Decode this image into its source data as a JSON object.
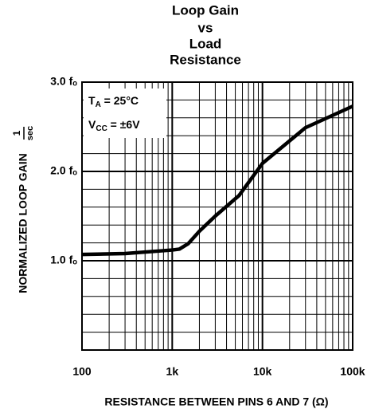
{
  "chart_data": {
    "type": "line",
    "title": [
      "Loop Gain",
      "vs",
      "Load",
      "Resistance"
    ],
    "x_label": "RESISTANCE BETWEEN PINS 6 AND 7 (Ω)",
    "y_label": "NORMALIZED LOOP GAIN",
    "y_unit": [
      "1",
      "sec"
    ],
    "annotations": [
      [
        "T",
        "A",
        " = 25°C"
      ],
      [
        "V",
        "CC",
        " = ±6V"
      ]
    ],
    "x": [
      100,
      300,
      1000,
      1200,
      1500,
      2000,
      3000,
      5500,
      10000,
      30000,
      100000
    ],
    "series": [
      {
        "color": "#000000",
        "values": [
          1.07,
          1.08,
          1.12,
          1.13,
          1.19,
          1.33,
          1.5,
          1.73,
          2.09,
          2.49,
          2.73
        ]
      }
    ],
    "log_x": true,
    "xlim": [
      100,
      100000
    ],
    "xticks": [
      {
        "value": 100,
        "label": "100"
      },
      {
        "value": 1000,
        "label": "1k"
      },
      {
        "value": 10000,
        "label": "10k"
      },
      {
        "value": 100000,
        "label": "100k"
      }
    ],
    "ylim": [
      0,
      3
    ],
    "yticks": [
      {
        "value": 1,
        "label": "1.0 fₒ"
      },
      {
        "value": 2,
        "label": "2.0 fₒ"
      },
      {
        "value": 3,
        "label": "3.0 fₒ"
      }
    ],
    "grid": true
  }
}
